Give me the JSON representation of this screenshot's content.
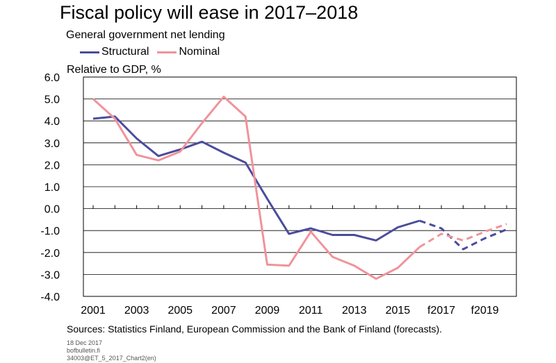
{
  "chart_data": {
    "type": "line",
    "title": "Fiscal policy will ease in 2017–2018",
    "subtitle": "General government net lending",
    "ylabel": "Relative to GDP, %",
    "ylim": [
      -4.0,
      6.0
    ],
    "y_ticks": [
      "6.0",
      "5.0",
      "4.0",
      "3.0",
      "2.0",
      "1.0",
      "0.0",
      "-1.0",
      "-2.0",
      "-3.0",
      "-4.0"
    ],
    "x": [
      2001,
      2002,
      2003,
      2004,
      2005,
      2006,
      2007,
      2008,
      2009,
      2010,
      2011,
      2012,
      2013,
      2014,
      2015,
      2016,
      2017,
      2018,
      2019,
      2020
    ],
    "x_tick_labels": [
      "2001",
      "2003",
      "2005",
      "2007",
      "2009",
      "2011",
      "2013",
      "2015",
      "f2017",
      "f2019"
    ],
    "forecast_from": 2016,
    "grid": true,
    "legend_position": "top-left",
    "series": [
      {
        "name": "Structural",
        "color": "#4b4c9c",
        "values": [
          4.1,
          4.2,
          3.2,
          2.4,
          2.7,
          3.05,
          2.55,
          2.1,
          0.45,
          -1.15,
          -0.9,
          -1.2,
          -1.2,
          -1.45,
          -0.85,
          -0.55,
          -0.9,
          -1.85,
          -1.35,
          -0.95
        ]
      },
      {
        "name": "Nominal",
        "color": "#f0939b",
        "values": [
          5.0,
          4.1,
          2.45,
          2.2,
          2.6,
          3.9,
          5.1,
          4.2,
          -2.55,
          -2.6,
          -1.05,
          -2.2,
          -2.6,
          -3.2,
          -2.7,
          -1.75,
          -1.15,
          -1.45,
          -1.05,
          -0.7
        ]
      }
    ]
  },
  "sources": "Sources: Statistics Finland, European Commission and the Bank of Finland (forecasts).",
  "meta": {
    "date": "18 Dec 2017",
    "site": "bofbulletin.fi",
    "code": "34003@ET_5_2017_Chart2(en)"
  }
}
